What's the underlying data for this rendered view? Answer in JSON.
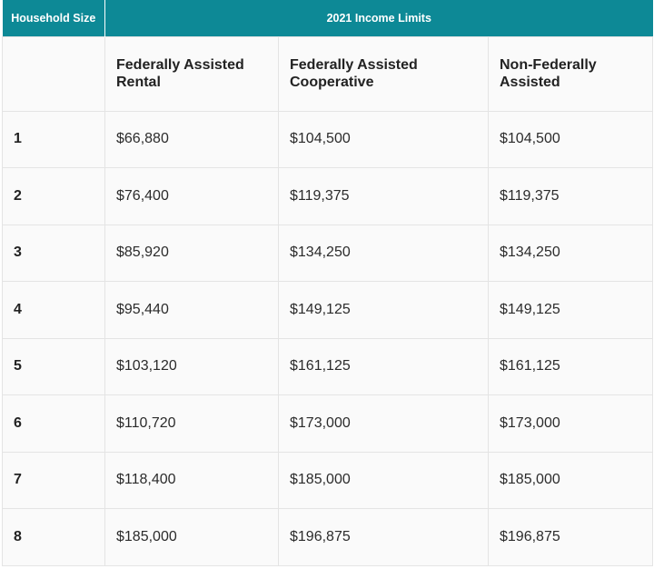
{
  "table": {
    "header_household": "Household Size",
    "header_limits": "2021 Income Limits",
    "subheaders": {
      "col1": "Federally Assisted Rental",
      "col2": "Federally Assisted Cooperative",
      "col3": "Non-Federally Assisted"
    },
    "rows": [
      {
        "size": "1",
        "rental": "$66,880",
        "coop": "$104,500",
        "non_fed": "$104,500"
      },
      {
        "size": "2",
        "rental": "$76,400",
        "coop": "$119,375",
        "non_fed": "$119,375"
      },
      {
        "size": "3",
        "rental": "$85,920",
        "coop": "$134,250",
        "non_fed": "$134,250"
      },
      {
        "size": "4",
        "rental": "$95,440",
        "coop": "$149,125",
        "non_fed": "$149,125"
      },
      {
        "size": "5",
        "rental": "$103,120",
        "coop": "$161,125",
        "non_fed": "$161,125"
      },
      {
        "size": "6",
        "rental": "$110,720",
        "coop": "$173,000",
        "non_fed": "$173,000"
      },
      {
        "size": "7",
        "rental": "$118,400",
        "coop": "$185,000",
        "non_fed": "$185,000"
      },
      {
        "size": "8",
        "rental": "$185,000",
        "coop": "$196,875",
        "non_fed": "$196,875"
      }
    ]
  },
  "colors": {
    "header_bg": "#0d8996",
    "cell_bg": "#fafafa",
    "border": "#e4e4e4"
  }
}
